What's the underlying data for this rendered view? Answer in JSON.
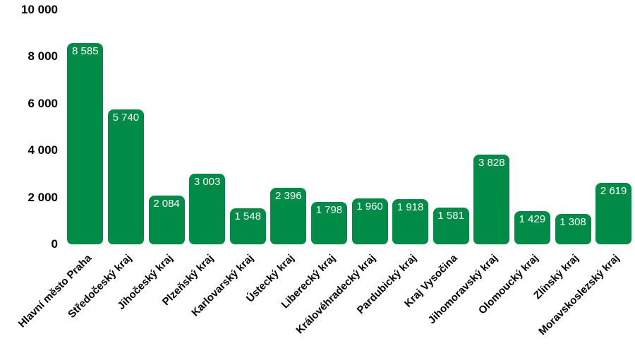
{
  "chart_data": {
    "type": "bar",
    "categories": [
      "Hlavní město Praha",
      "Středočeský kraj",
      "Jihočeský kraj",
      "Plzeňský kraj",
      "Karlovarský kraj",
      "Ústecký kraj",
      "Liberecký kraj",
      "Královéhradecký kraj",
      "Pardubický kraj",
      "Kraj Vysočina",
      "Jihomoravský kraj",
      "Olomoucký kraj",
      "Zlínský kraj",
      "Moravskoslezský kraj"
    ],
    "values": [
      8585,
      5740,
      2084,
      3003,
      1548,
      2396,
      1798,
      1960,
      1918,
      1581,
      3828,
      1429,
      1308,
      2619
    ],
    "value_labels": [
      "8 585",
      "5 740",
      "2 084",
      "3 003",
      "1 548",
      "2 396",
      "1 798",
      "1 960",
      "1 918",
      "1 581",
      "3 828",
      "1 429",
      "1 308",
      "2 619"
    ],
    "title": "",
    "xlabel": "",
    "ylabel": "",
    "ylim": [
      0,
      10000
    ],
    "yticks": [
      0,
      2000,
      4000,
      6000,
      8000,
      10000
    ],
    "ytick_labels": [
      "0",
      "2 000",
      "4 000",
      "6 000",
      "8 000",
      "10 000"
    ],
    "grid": false,
    "legend": false,
    "bar_color": "#008C46",
    "value_label_color": "#FFFFFF",
    "axis_text_color": "#000000",
    "background_color": "#FFFFFF"
  }
}
